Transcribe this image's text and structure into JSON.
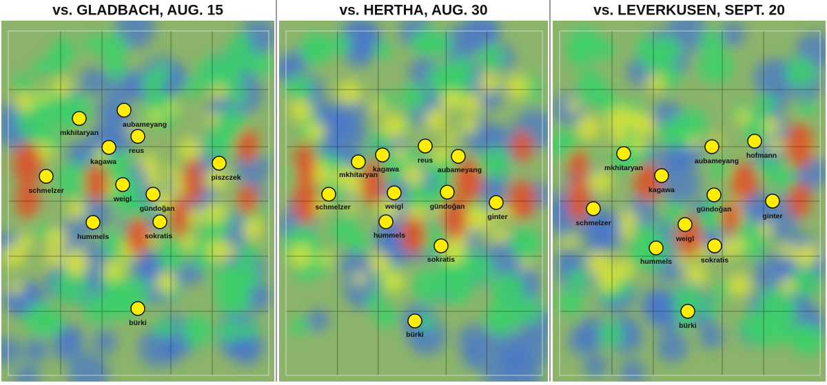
{
  "panels": [
    {
      "title": "vs. GLADBACH, AUG. 15",
      "players": [
        "mkhitaryan",
        "aubameyang",
        "reus",
        "kagawa",
        "piszczek",
        "schmelzer",
        "weigl",
        "gündoğan",
        "hummels",
        "sokratis",
        "bürki"
      ]
    },
    {
      "title": "vs. HERTHA, AUG. 30",
      "players": [
        "mkhitaryan",
        "kagawa",
        "reus",
        "aubameyang",
        "schmelzer",
        "weigl",
        "gündoğan",
        "ginter",
        "hummels",
        "sokratis",
        "bürki"
      ]
    },
    {
      "title": "vs. LEVERKUSEN, SEPT. 20",
      "players": [
        "mkhitaryan",
        "aubameyang",
        "hofmann",
        "kagawa",
        "gündoğan",
        "ginter",
        "schmelzer",
        "weigl",
        "hummels",
        "sokratis",
        "bürki"
      ]
    }
  ]
}
